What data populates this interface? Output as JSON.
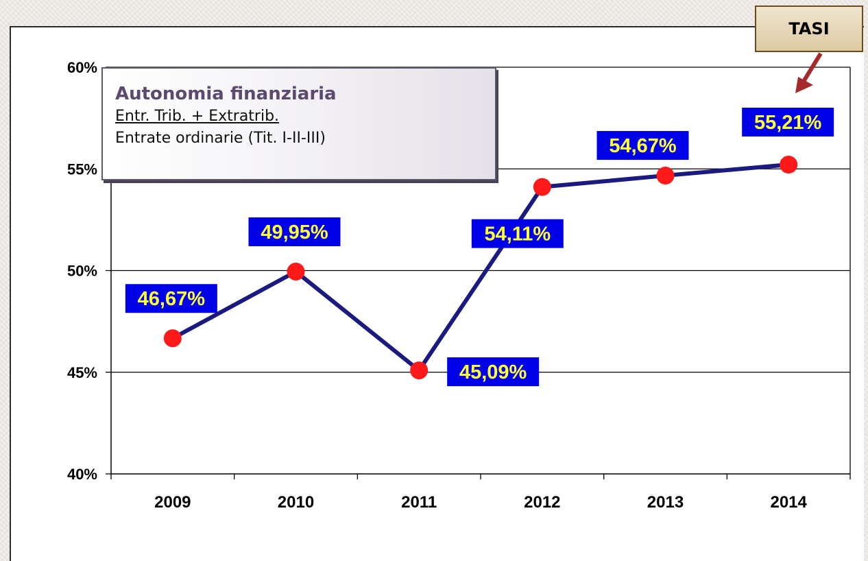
{
  "legend": {
    "title": "Autonomia finanziaria",
    "numerator": "Entr. Trib. + Extratrib.",
    "denominator": "Entrate ordinarie (Tit. I-II-III)"
  },
  "callout": {
    "label": "TASI"
  },
  "colors": {
    "line": "#1a1a80",
    "marker": "#ff1a1a",
    "label_bg": "#0000e8",
    "label_text": "#ffff33",
    "callout_arrow": "#a52a2a"
  },
  "chart_data": {
    "type": "line",
    "categories": [
      "2009",
      "2010",
      "2011",
      "2012",
      "2013",
      "2014"
    ],
    "series": [
      {
        "values": [
          46.67,
          49.95,
          45.09,
          54.11,
          54.67,
          55.21
        ]
      }
    ],
    "data_labels": [
      "46,67%",
      "49,95%",
      "45,09%",
      "54,11%",
      "54,67%",
      "55,21%"
    ],
    "y_ticks": [
      "40%",
      "45%",
      "50%",
      "55%",
      "60%"
    ],
    "ylim": [
      40,
      60
    ],
    "grid": true,
    "title": "",
    "xlabel": "",
    "ylabel": ""
  }
}
